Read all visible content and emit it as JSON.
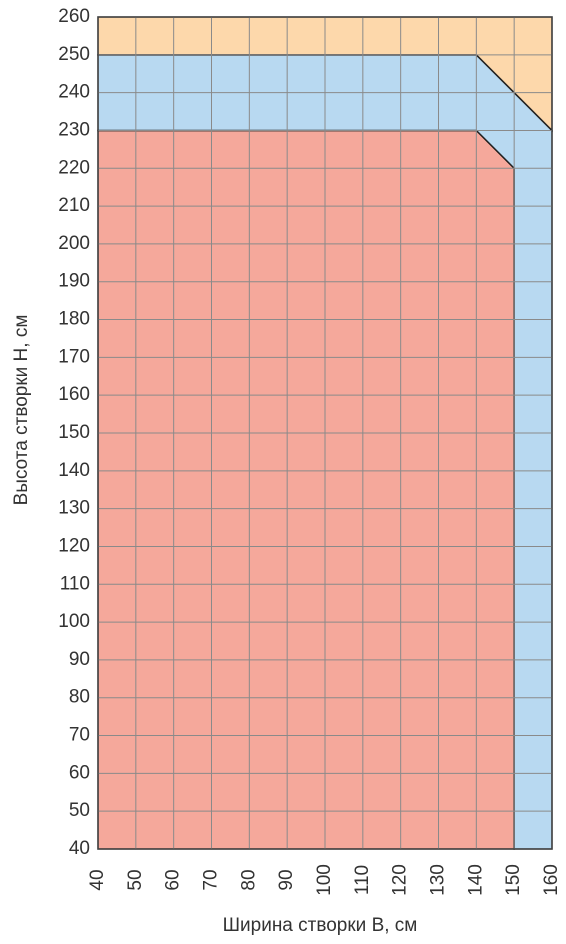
{
  "chart_data": {
    "type": "area",
    "xlabel": "Ширина створки B, см",
    "ylabel": "Высота створки H, см",
    "xlim": [
      40,
      160
    ],
    "xticks": [
      40,
      50,
      60,
      70,
      80,
      90,
      100,
      110,
      120,
      130,
      140,
      150,
      160
    ],
    "ylim": [
      40,
      260
    ],
    "yticks": [
      40,
      50,
      60,
      70,
      80,
      90,
      100,
      110,
      120,
      130,
      140,
      150,
      160,
      170,
      180,
      190,
      200,
      210,
      220,
      230,
      240,
      250,
      260
    ],
    "grid": true,
    "series": [
      {
        "color": "#f5a89b",
        "x": [
          40,
          40,
          140,
          150,
          150
        ],
        "values": [
          40,
          230,
          230,
          220,
          40
        ]
      },
      {
        "color": "#b8d9f1",
        "x": [
          40,
          40,
          140,
          160,
          160,
          150,
          150,
          140
        ],
        "values": [
          230,
          250,
          250,
          230,
          40,
          40,
          220,
          230
        ]
      },
      {
        "color": "#fdd8ab",
        "x": [
          40,
          40,
          160,
          160,
          140
        ],
        "values": [
          250,
          260,
          260,
          230,
          250
        ]
      }
    ]
  }
}
